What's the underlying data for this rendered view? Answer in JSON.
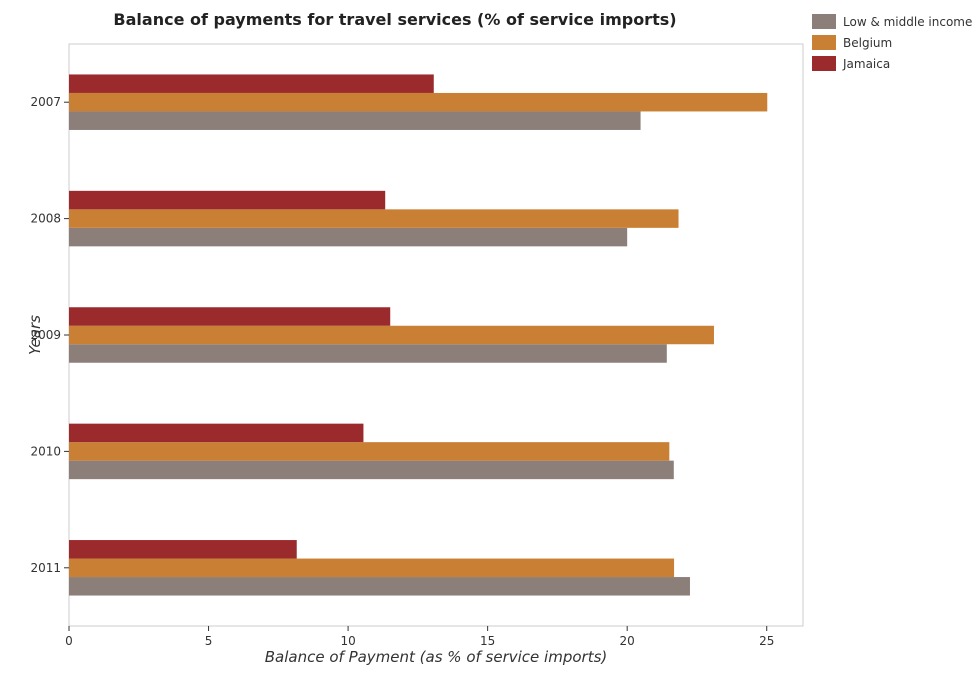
{
  "chart_data": {
    "type": "bar",
    "orientation": "horizontal",
    "title": "Balance of payments for travel services (% of service imports)",
    "xlabel": "Balance of Payment (as % of service imports)",
    "ylabel": "Years",
    "categories": [
      "2007",
      "2008",
      "2009",
      "2010",
      "2011"
    ],
    "series": [
      {
        "name": "Low & middle income",
        "color": "#8c7e79",
        "values": [
          20.48,
          20.0,
          21.42,
          21.67,
          22.25
        ]
      },
      {
        "name": "Belgium",
        "color": "#ca8034",
        "values": [
          25.02,
          21.84,
          23.11,
          21.51,
          21.68
        ]
      },
      {
        "name": "Jamaica",
        "color": "#9b2a2c",
        "values": [
          13.07,
          11.33,
          11.51,
          10.55,
          8.16
        ]
      }
    ],
    "xlim": [
      0,
      26.3
    ],
    "xticks": [
      0,
      5,
      10,
      15,
      20,
      25
    ],
    "grid": false,
    "legend_position": "top-right"
  }
}
